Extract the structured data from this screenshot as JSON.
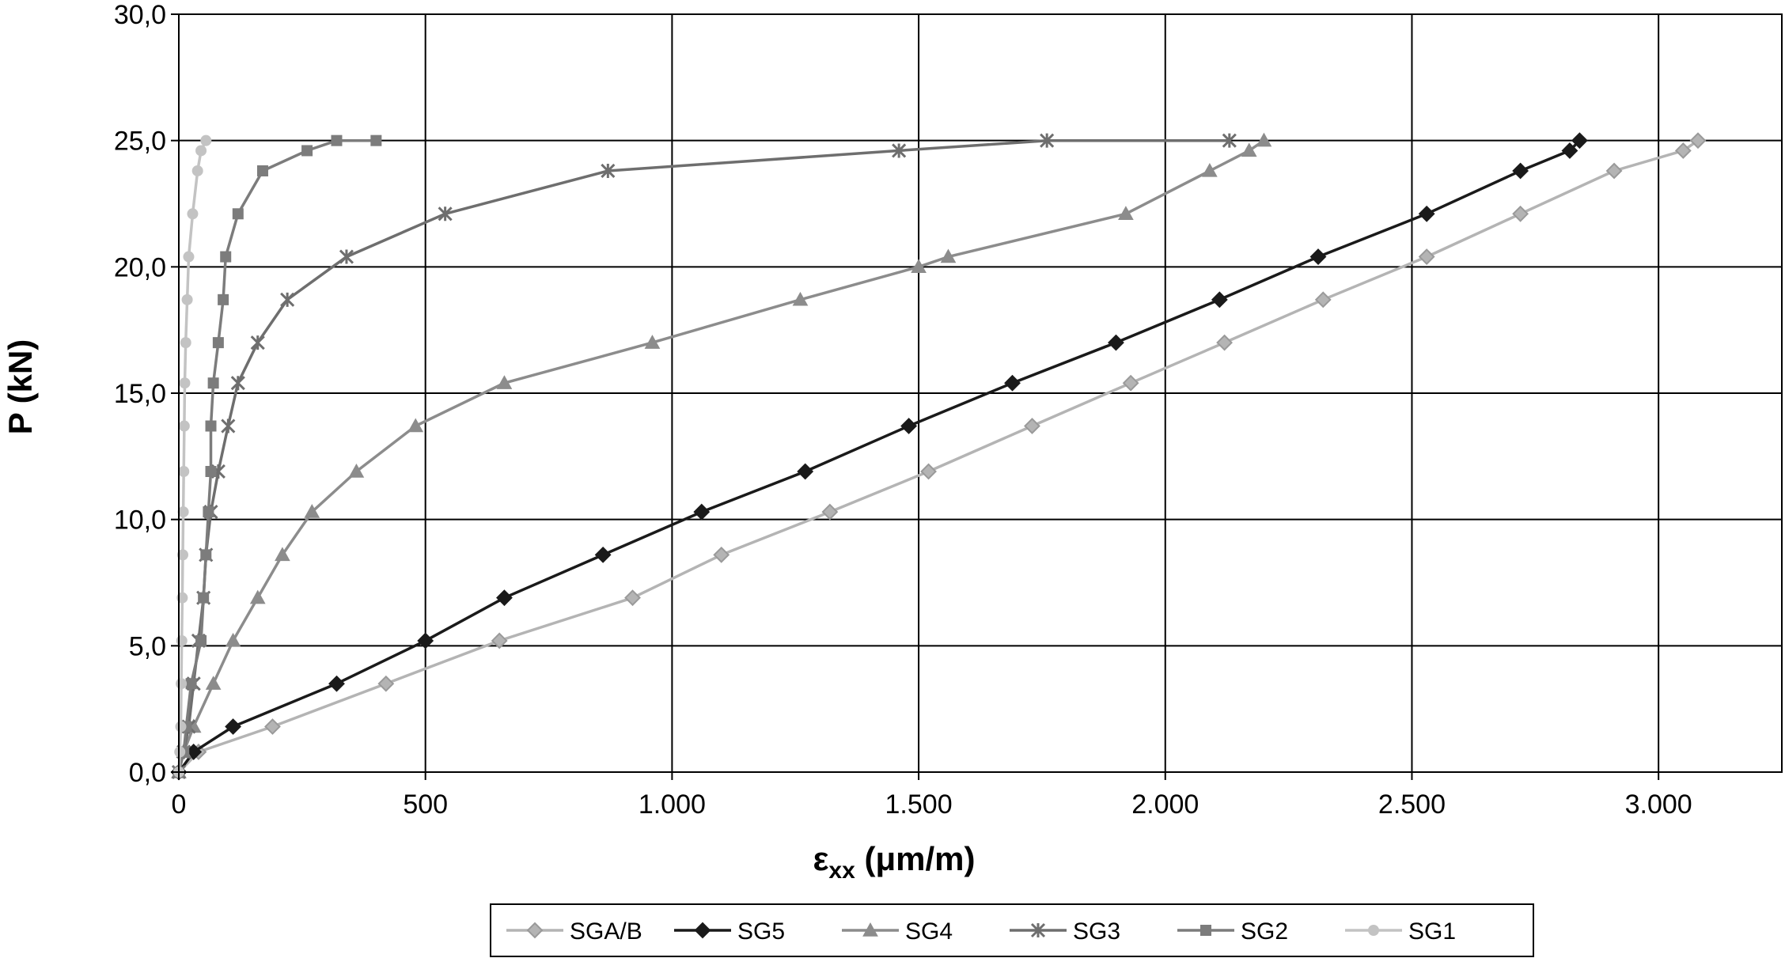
{
  "chart_data": {
    "type": "line",
    "title": "",
    "xlabel_main": "ε",
    "xlabel_sub": "xx",
    "xlabel_unit": " (μm/m)",
    "ylabel": "P (kN)",
    "xlim": [
      0,
      3250
    ],
    "ylim": [
      0,
      30
    ],
    "x_ticks": [
      0,
      500,
      1000,
      1500,
      2000,
      2500,
      3000
    ],
    "x_tick_labels": [
      "0",
      "500",
      "1.000",
      "1.500",
      "2.000",
      "2.500",
      "3.000"
    ],
    "y_ticks": [
      0,
      5,
      10,
      15,
      20,
      25,
      30
    ],
    "y_tick_labels": [
      "0,0",
      "5,0",
      "10,0",
      "15,0",
      "20,0",
      "25,0",
      "30,0"
    ],
    "grid": true,
    "legend_position": "bottom",
    "series": [
      {
        "name": "SGA/B",
        "color": "#b4b4b4",
        "marker": "diamond-open",
        "points": [
          [
            0,
            0
          ],
          [
            40,
            0.8
          ],
          [
            190,
            1.8
          ],
          [
            420,
            3.5
          ],
          [
            650,
            5.2
          ],
          [
            920,
            6.9
          ],
          [
            1100,
            8.6
          ],
          [
            1320,
            10.3
          ],
          [
            1520,
            11.9
          ],
          [
            1730,
            13.7
          ],
          [
            1930,
            15.4
          ],
          [
            2120,
            17.0
          ],
          [
            2320,
            18.7
          ],
          [
            2530,
            20.4
          ],
          [
            2720,
            22.1
          ],
          [
            2910,
            23.8
          ],
          [
            3050,
            24.6
          ],
          [
            3080,
            25.0
          ]
        ]
      },
      {
        "name": "SG5",
        "color": "#1a1a1a",
        "marker": "diamond",
        "points": [
          [
            0,
            0
          ],
          [
            30,
            0.8
          ],
          [
            110,
            1.8
          ],
          [
            320,
            3.5
          ],
          [
            500,
            5.2
          ],
          [
            660,
            6.9
          ],
          [
            860,
            8.6
          ],
          [
            1060,
            10.3
          ],
          [
            1270,
            11.9
          ],
          [
            1480,
            13.7
          ],
          [
            1690,
            15.4
          ],
          [
            1900,
            17.0
          ],
          [
            2110,
            18.7
          ],
          [
            2310,
            20.4
          ],
          [
            2530,
            22.1
          ],
          [
            2720,
            23.8
          ],
          [
            2820,
            24.6
          ],
          [
            2840,
            25.0
          ]
        ]
      },
      {
        "name": "SG4",
        "color": "#8c8c8c",
        "marker": "triangle",
        "points": [
          [
            0,
            0
          ],
          [
            10,
            0.8
          ],
          [
            30,
            1.8
          ],
          [
            70,
            3.5
          ],
          [
            110,
            5.2
          ],
          [
            160,
            6.9
          ],
          [
            210,
            8.6
          ],
          [
            270,
            10.3
          ],
          [
            360,
            11.9
          ],
          [
            480,
            13.7
          ],
          [
            660,
            15.4
          ],
          [
            960,
            17.0
          ],
          [
            1260,
            18.7
          ],
          [
            1500,
            20.0
          ],
          [
            1560,
            20.4
          ],
          [
            1920,
            22.1
          ],
          [
            2090,
            23.8
          ],
          [
            2170,
            24.6
          ],
          [
            2200,
            25.0
          ]
        ]
      },
      {
        "name": "SG3",
        "color": "#6e6e6e",
        "marker": "star",
        "points": [
          [
            0,
            0
          ],
          [
            10,
            0.8
          ],
          [
            20,
            1.8
          ],
          [
            30,
            3.5
          ],
          [
            40,
            5.2
          ],
          [
            50,
            6.9
          ],
          [
            55,
            8.6
          ],
          [
            65,
            10.3
          ],
          [
            80,
            11.9
          ],
          [
            100,
            13.7
          ],
          [
            120,
            15.4
          ],
          [
            160,
            17.0
          ],
          [
            220,
            18.7
          ],
          [
            340,
            20.4
          ],
          [
            540,
            22.1
          ],
          [
            870,
            23.8
          ],
          [
            1460,
            24.6
          ],
          [
            1760,
            25.0
          ],
          [
            2130,
            25.0
          ]
        ]
      },
      {
        "name": "SG2",
        "color": "#7c7c7c",
        "marker": "square",
        "points": [
          [
            0,
            0
          ],
          [
            10,
            0.8
          ],
          [
            15,
            1.8
          ],
          [
            25,
            3.5
          ],
          [
            45,
            5.2
          ],
          [
            50,
            6.9
          ],
          [
            55,
            8.6
          ],
          [
            60,
            10.3
          ],
          [
            65,
            11.9
          ],
          [
            65,
            13.7
          ],
          [
            70,
            15.4
          ],
          [
            80,
            17.0
          ],
          [
            90,
            18.7
          ],
          [
            95,
            20.4
          ],
          [
            120,
            22.1
          ],
          [
            170,
            23.8
          ],
          [
            260,
            24.6
          ],
          [
            320,
            25.0
          ],
          [
            400,
            25.0
          ]
        ]
      },
      {
        "name": "SG1",
        "color": "#c3c3c3",
        "marker": "circle",
        "points": [
          [
            0,
            0
          ],
          [
            2,
            0.8
          ],
          [
            4,
            1.8
          ],
          [
            5,
            3.5
          ],
          [
            6,
            5.2
          ],
          [
            7,
            6.9
          ],
          [
            8,
            8.6
          ],
          [
            9,
            10.3
          ],
          [
            10,
            11.9
          ],
          [
            11,
            13.7
          ],
          [
            12,
            15.4
          ],
          [
            14,
            17.0
          ],
          [
            17,
            18.7
          ],
          [
            20,
            20.4
          ],
          [
            28,
            22.1
          ],
          [
            38,
            23.8
          ],
          [
            45,
            24.6
          ],
          [
            55,
            25.0
          ]
        ]
      }
    ]
  }
}
